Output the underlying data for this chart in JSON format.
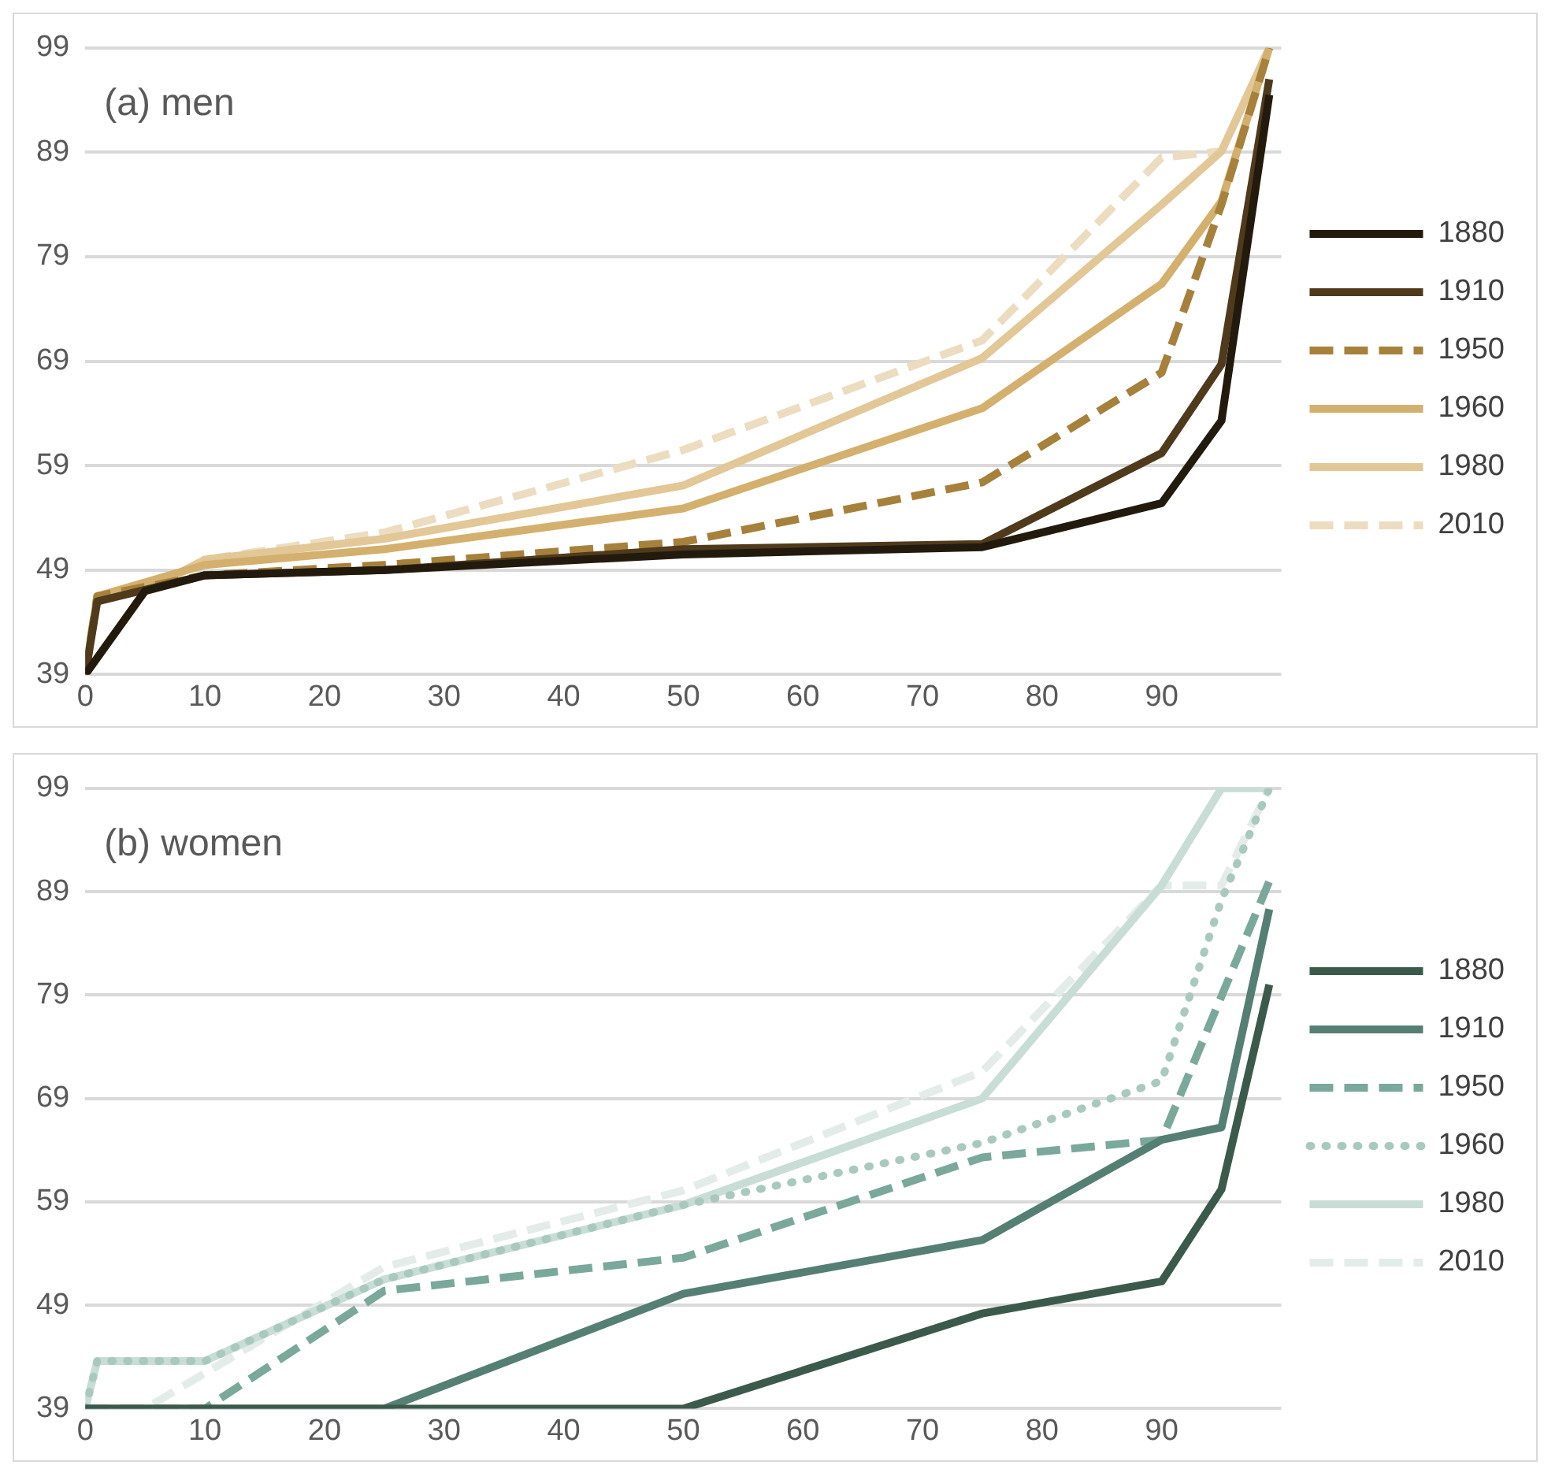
{
  "chart_data": [
    {
      "type": "line",
      "annotations": [
        "(a) men"
      ],
      "xlim": [
        0,
        100
      ],
      "xticks": [
        0,
        10,
        20,
        30,
        40,
        50,
        60,
        70,
        80,
        90
      ],
      "ylim": [
        39,
        99
      ],
      "yticks": [
        39,
        49,
        59,
        69,
        79,
        89,
        99
      ],
      "grid": "y",
      "legend": "right",
      "marker": "none",
      "series": [
        {
          "name": "1880",
          "color": "#231a0e",
          "line_style": "solid",
          "x": [
            0,
            5,
            10,
            25,
            50,
            75,
            90,
            95,
            99
          ],
          "values": [
            39,
            47,
            48.5,
            49,
            50.5,
            51.2,
            55.4,
            63.3,
            94.5
          ]
        },
        {
          "name": "1910",
          "color": "#4f3a1c",
          "line_style": "solid",
          "x": [
            0,
            1,
            10,
            25,
            50,
            75,
            90,
            95,
            99
          ],
          "values": [
            39,
            46,
            48.5,
            49,
            51,
            51.5,
            60.2,
            68.7,
            96
          ]
        },
        {
          "name": "1950",
          "color": "#a6813c",
          "line_style": "dashed",
          "x": [
            0,
            1,
            10,
            25,
            50,
            75,
            90,
            95,
            99
          ],
          "values": [
            39,
            46.5,
            48.5,
            49.5,
            51.7,
            57.4,
            67.9,
            84,
            99
          ]
        },
        {
          "name": "1960",
          "color": "#d4b06e",
          "line_style": "solid",
          "x": [
            0,
            1,
            10,
            25,
            50,
            75,
            90,
            95,
            99
          ],
          "values": [
            39,
            46.5,
            49.5,
            51,
            54.9,
            64.5,
            76.4,
            84.3,
            99
          ]
        },
        {
          "name": "1980",
          "color": "#e2c797",
          "line_style": "solid",
          "x": [
            0,
            5,
            10,
            25,
            50,
            75,
            90,
            95,
            99
          ],
          "values": [
            39,
            47,
            50,
            52,
            57.1,
            69.3,
            84,
            89.1,
            99
          ]
        },
        {
          "name": "2010",
          "color": "#ecdcc0",
          "line_style": "dashed",
          "x": [
            0,
            5,
            10,
            25,
            50,
            75,
            90,
            95,
            99
          ],
          "values": [
            39,
            47,
            50,
            52.6,
            60.5,
            71,
            88.5,
            89.1,
            99
          ]
        }
      ]
    },
    {
      "type": "line",
      "annotations": [
        "(b) women"
      ],
      "xlim": [
        0,
        100
      ],
      "xticks": [
        0,
        10,
        20,
        30,
        40,
        50,
        60,
        70,
        80,
        90
      ],
      "ylim": [
        39,
        99
      ],
      "yticks": [
        39,
        49,
        59,
        69,
        79,
        89,
        99
      ],
      "grid": "y",
      "legend": "right",
      "marker": "none",
      "series": [
        {
          "name": "1880",
          "color": "#3c5a4c",
          "line_style": "solid",
          "x": [
            0,
            50,
            75,
            90,
            95,
            99
          ],
          "values": [
            39,
            39,
            48.2,
            51.3,
            60.2,
            80
          ]
        },
        {
          "name": "1910",
          "color": "#557f72",
          "line_style": "solid",
          "x": [
            0,
            25,
            50,
            75,
            90,
            95,
            99
          ],
          "values": [
            39,
            39,
            50.1,
            55.3,
            65,
            66.2,
            87.3
          ]
        },
        {
          "name": "1950",
          "color": "#7aa89a",
          "line_style": "dashed",
          "x": [
            0,
            10,
            25,
            50,
            75,
            90,
            99
          ],
          "values": [
            39,
            39,
            50.4,
            53.6,
            63.3,
            65,
            90
          ]
        },
        {
          "name": "1960",
          "color": "#a9c9bf",
          "line_style": "dotted",
          "x": [
            0,
            1,
            10,
            25,
            50,
            75,
            90,
            95,
            99
          ],
          "values": [
            39,
            43.6,
            43.6,
            51.5,
            58.7,
            64.7,
            70.7,
            88.2,
            99
          ]
        },
        {
          "name": "1980",
          "color": "#c7ddd6",
          "line_style": "solid",
          "x": [
            0,
            1,
            10,
            25,
            50,
            75,
            90,
            95,
            99
          ],
          "values": [
            39,
            43.6,
            43.6,
            51.5,
            58.7,
            69,
            89.6,
            99,
            99
          ]
        },
        {
          "name": "2010",
          "color": "#e3ece8",
          "line_style": "dashed",
          "x": [
            0,
            5,
            25,
            50,
            75,
            90,
            95,
            99
          ],
          "values": [
            39,
            39,
            52.7,
            60.1,
            71.6,
            89.6,
            89.6,
            99
          ]
        }
      ]
    }
  ]
}
